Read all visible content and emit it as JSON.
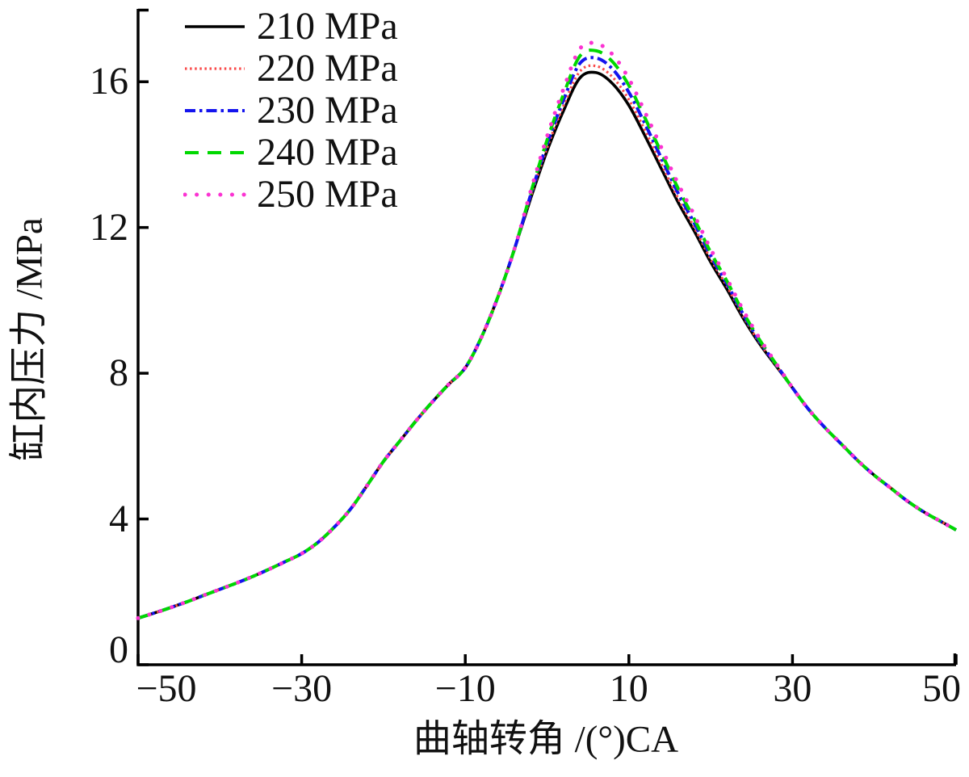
{
  "chart_data": {
    "type": "line",
    "title": "",
    "xlabel": "曲轴转角 /(°)CA",
    "ylabel": "缸内压力 /MPa",
    "xlim": [
      -50,
      50
    ],
    "ylim": [
      0,
      18
    ],
    "xticks": [
      -50,
      -30,
      -10,
      10,
      30,
      50
    ],
    "xtick_labels": [
      "−50",
      "−30",
      "−10",
      "10",
      "30",
      "50"
    ],
    "yticks": [
      0,
      4,
      8,
      12,
      16
    ],
    "ytick_labels": [
      "0",
      "4",
      "8",
      "12",
      "16"
    ],
    "grid": false,
    "legend_position": "top-left",
    "axis_color": "#000000",
    "x": [
      -50,
      -48,
      -46,
      -44,
      -42,
      -40,
      -38,
      -36,
      -34,
      -32,
      -30,
      -28,
      -26,
      -24,
      -22,
      -20,
      -18,
      -16,
      -14,
      -12,
      -10,
      -8,
      -6,
      -4,
      -2,
      0,
      2,
      4,
      6,
      8,
      10,
      12,
      14,
      16,
      18,
      20,
      22,
      24,
      26,
      28,
      30,
      32,
      34,
      36,
      38,
      40,
      42,
      44,
      46,
      48,
      50
    ],
    "series": [
      {
        "name": "210 MPa",
        "color": "#000000",
        "style": "solid",
        "peak": 16.25,
        "values": [
          1.28,
          1.42,
          1.57,
          1.73,
          1.9,
          2.07,
          2.24,
          2.42,
          2.62,
          2.83,
          3.05,
          3.36,
          3.78,
          4.28,
          4.92,
          5.58,
          6.14,
          6.7,
          7.22,
          7.7,
          8.15,
          9.0,
          10.1,
          11.4,
          12.8,
          14.1,
          15.2,
          16.1,
          16.25,
          15.95,
          15.35,
          14.5,
          13.6,
          12.7,
          11.9,
          11.05,
          10.3,
          9.5,
          8.8,
          8.2,
          7.6,
          7.0,
          6.5,
          6.05,
          5.6,
          5.2,
          4.85,
          4.5,
          4.2,
          3.95,
          3.7
        ]
      },
      {
        "name": "220 MPa",
        "color": "#f94b4b",
        "style": "dotted-fine",
        "peak": 16.43,
        "values": [
          1.28,
          1.42,
          1.57,
          1.73,
          1.9,
          2.07,
          2.24,
          2.42,
          2.62,
          2.83,
          3.05,
          3.36,
          3.78,
          4.28,
          4.92,
          5.58,
          6.14,
          6.7,
          7.22,
          7.7,
          8.15,
          9.0,
          10.1,
          11.4,
          12.85,
          14.19,
          15.34,
          16.28,
          16.43,
          16.13,
          15.51,
          14.65,
          13.73,
          12.81,
          12.0,
          11.13,
          10.38,
          9.55,
          8.83,
          8.22,
          7.6,
          7.0,
          6.5,
          6.05,
          5.6,
          5.2,
          4.85,
          4.5,
          4.2,
          3.95,
          3.7
        ]
      },
      {
        "name": "230 MPa",
        "color": "#1414ee",
        "style": "dash-dot",
        "peak": 16.65,
        "values": [
          1.28,
          1.42,
          1.57,
          1.73,
          1.9,
          2.07,
          2.24,
          2.42,
          2.62,
          2.83,
          3.05,
          3.36,
          3.78,
          4.28,
          4.92,
          5.58,
          6.14,
          6.7,
          7.22,
          7.7,
          8.15,
          9.0,
          10.1,
          11.4,
          12.9,
          14.3,
          15.5,
          16.5,
          16.65,
          16.35,
          15.71,
          14.83,
          13.89,
          12.95,
          12.12,
          11.23,
          10.45,
          9.61,
          8.87,
          8.24,
          7.6,
          7.0,
          6.5,
          6.05,
          5.6,
          5.2,
          4.85,
          4.5,
          4.2,
          3.95,
          3.7
        ]
      },
      {
        "name": "240 MPa",
        "color": "#00d800",
        "style": "dashed",
        "peak": 16.85,
        "values": [
          1.28,
          1.42,
          1.57,
          1.73,
          1.9,
          2.07,
          2.24,
          2.42,
          2.62,
          2.83,
          3.05,
          3.36,
          3.78,
          4.28,
          4.92,
          5.58,
          6.14,
          6.7,
          7.22,
          7.7,
          8.15,
          9.0,
          10.1,
          11.4,
          12.95,
          14.4,
          15.65,
          16.7,
          16.85,
          16.55,
          15.9,
          14.99,
          14.04,
          13.08,
          12.23,
          11.32,
          10.52,
          9.66,
          8.91,
          8.25,
          7.6,
          7.0,
          6.5,
          6.05,
          5.6,
          5.2,
          4.85,
          4.5,
          4.2,
          3.95,
          3.7
        ]
      },
      {
        "name": "250 MPa",
        "color": "#fb33d2",
        "style": "dotted-round",
        "peak": 17.05,
        "values": [
          1.28,
          1.42,
          1.57,
          1.73,
          1.9,
          2.07,
          2.24,
          2.42,
          2.62,
          2.83,
          3.05,
          3.36,
          3.78,
          4.28,
          4.92,
          5.58,
          6.14,
          6.7,
          7.22,
          7.7,
          8.15,
          9.0,
          10.1,
          11.4,
          13.0,
          14.5,
          15.8,
          16.9,
          17.05,
          16.75,
          16.08,
          15.15,
          14.18,
          13.21,
          12.34,
          11.41,
          10.59,
          9.72,
          8.95,
          8.27,
          7.6,
          7.0,
          6.5,
          6.05,
          5.6,
          5.2,
          4.85,
          4.5,
          4.2,
          3.95,
          3.7
        ]
      }
    ]
  }
}
